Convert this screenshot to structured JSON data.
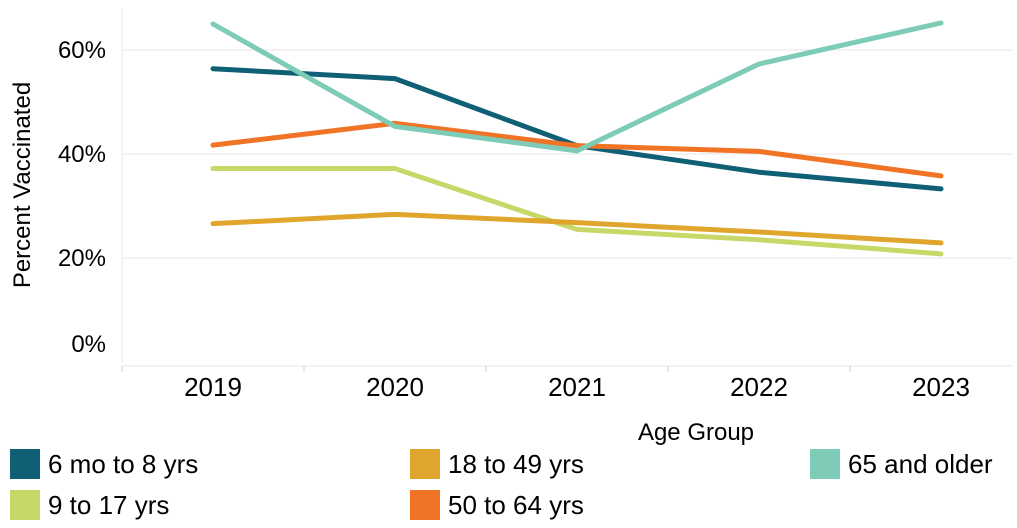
{
  "chart_data": {
    "type": "line",
    "title": "",
    "xlabel": "Age Group",
    "ylabel": "Percent Vaccinated",
    "x": [
      "2019",
      "2020",
      "2021",
      "2022",
      "2023"
    ],
    "ylim": [
      0,
      70
    ],
    "yticks": [
      0,
      20,
      40,
      60
    ],
    "ytick_labels": [
      "0%",
      "20%",
      "40%",
      "60%"
    ],
    "grid": true,
    "legend_position": "bottom",
    "series": [
      {
        "name": "6 mo to 8 yrs",
        "color": "#0f5f75",
        "values": [
          56.4,
          54.5,
          41.6,
          36.5,
          33.3
        ]
      },
      {
        "name": "9 to 17 yrs",
        "color": "#c8d868",
        "values": [
          37.2,
          37.2,
          25.5,
          23.5,
          20.8
        ]
      },
      {
        "name": "18 to 49 yrs",
        "color": "#e0a52c",
        "values": [
          26.6,
          28.4,
          26.8,
          25.0,
          22.9
        ]
      },
      {
        "name": "50 to 64 yrs",
        "color": "#f07326",
        "values": [
          41.7,
          45.9,
          41.6,
          40.5,
          35.8
        ]
      },
      {
        "name": "65 and older",
        "color": "#7ecbb8",
        "values": [
          65.0,
          45.3,
          40.6,
          57.3,
          65.2
        ]
      }
    ]
  }
}
